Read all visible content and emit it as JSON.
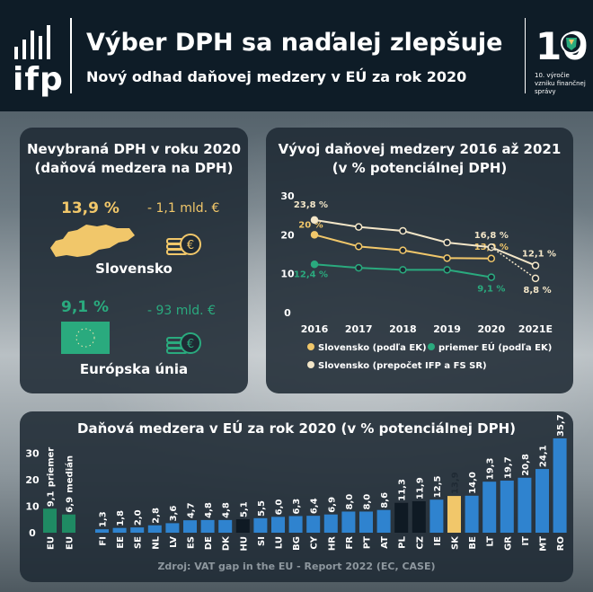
{
  "header": {
    "title": "Výber DPH sa naďalej zlepšuje",
    "subtitle": "Nový odhad daňovej medzery v EÚ za rok 2020",
    "logo_text": "ifp",
    "anniversary_text": "10. výročie vzniku finančnej správy",
    "anniversary_number": "10"
  },
  "left_panel": {
    "title_line1": "Nevybraná DPH v roku 2020",
    "title_line2": "(daňová medzera na DPH)",
    "sk_pct": "13,9 %",
    "sk_amount": "- 1,1 mld. €",
    "sk_label": "Slovensko",
    "eu_pct": "9,1 %",
    "eu_amount": "- 93 mld. €",
    "eu_label": "Európska únia",
    "colors": {
      "sk": "#f1c76a",
      "eu": "#2aaa7e"
    }
  },
  "chart_data": [
    {
      "type": "line",
      "title": "Vývoj daňovej medzery 2016 až 2021",
      "subtitle": "(v % potenciálnej DPH)",
      "x": [
        "2016",
        "2017",
        "2018",
        "2019",
        "2020",
        "2021E"
      ],
      "ylim": [
        0,
        30
      ],
      "yticks": [
        "0",
        "10",
        "20",
        "30"
      ],
      "series": [
        {
          "name": "Slovensko (podľa EK)",
          "color": "#f1c76a",
          "values": [
            20.0,
            17.0,
            16.0,
            14.0,
            13.9,
            null
          ],
          "labels": {
            "0": "20 %",
            "4": "13,9 %"
          }
        },
        {
          "name": "priemer EÚ (podľa EK)",
          "color": "#2aaa7e",
          "values": [
            12.4,
            11.5,
            11.0,
            11.0,
            9.1,
            null
          ],
          "labels": {
            "0": "12,4 %",
            "4": "9,1 %"
          }
        },
        {
          "name": "Slovensko (prepočet IFP a FS SR)",
          "color": "#f3e6c8",
          "values": [
            23.8,
            22.0,
            21.0,
            18.0,
            16.8,
            12.1
          ],
          "labels": {
            "0": "23,8 %",
            "4": "16,8 %",
            "5": "12,1 %"
          },
          "projection": {
            "from": 4,
            "to": 5,
            "value": 8.8,
            "label": "8,8 %"
          }
        }
      ]
    },
    {
      "type": "bar",
      "title": "Daňová medzera v EÚ za rok 2020 (v % potenciálnej DPH)",
      "ylim": [
        0,
        35
      ],
      "yticks": [
        "0",
        "10",
        "20",
        "30"
      ],
      "categories": [
        "EU",
        "EU",
        "FI",
        "EE",
        "SE",
        "NL",
        "LV",
        "ES",
        "DE",
        "DK",
        "HU",
        "SI",
        "LU",
        "BG",
        "CY",
        "HR",
        "FR",
        "PT",
        "AT",
        "PL",
        "CZ",
        "IE",
        "SK",
        "BE",
        "LT",
        "GR",
        "IT",
        "MT",
        "RO"
      ],
      "values": [
        9.1,
        6.9,
        1.3,
        1.8,
        2.0,
        2.8,
        3.6,
        4.7,
        4.8,
        4.8,
        5.1,
        5.5,
        6.0,
        6.3,
        6.4,
        6.9,
        8.0,
        8.0,
        8.6,
        11.3,
        11.9,
        12.5,
        13.9,
        14.0,
        19.3,
        19.7,
        20.8,
        24.1,
        35.7
      ],
      "value_labels": [
        "9,1",
        "6,9",
        "1,3",
        "1,8",
        "2,0",
        "2,8",
        "3,6",
        "4,7",
        "4,8",
        "4,8",
        "5,1",
        "5,5",
        "6,0",
        "6,3",
        "6,4",
        "6,9",
        "8,0",
        "8,0",
        "8,6",
        "11,3",
        "11,9",
        "12,5",
        "13,9",
        "14,0",
        "19,3",
        "19,7",
        "20,8",
        "24,1",
        "35,7"
      ],
      "eu_labels": [
        "priemer",
        "medián"
      ],
      "colors": {
        "eu": "#1f8a63",
        "dark": "#0f1a24",
        "sk": "#f1c76a",
        "blue": "#2f83cf"
      },
      "source": "Zdroj:  VAT gap in the EU - Report 2022 (EC, CASE)"
    }
  ]
}
